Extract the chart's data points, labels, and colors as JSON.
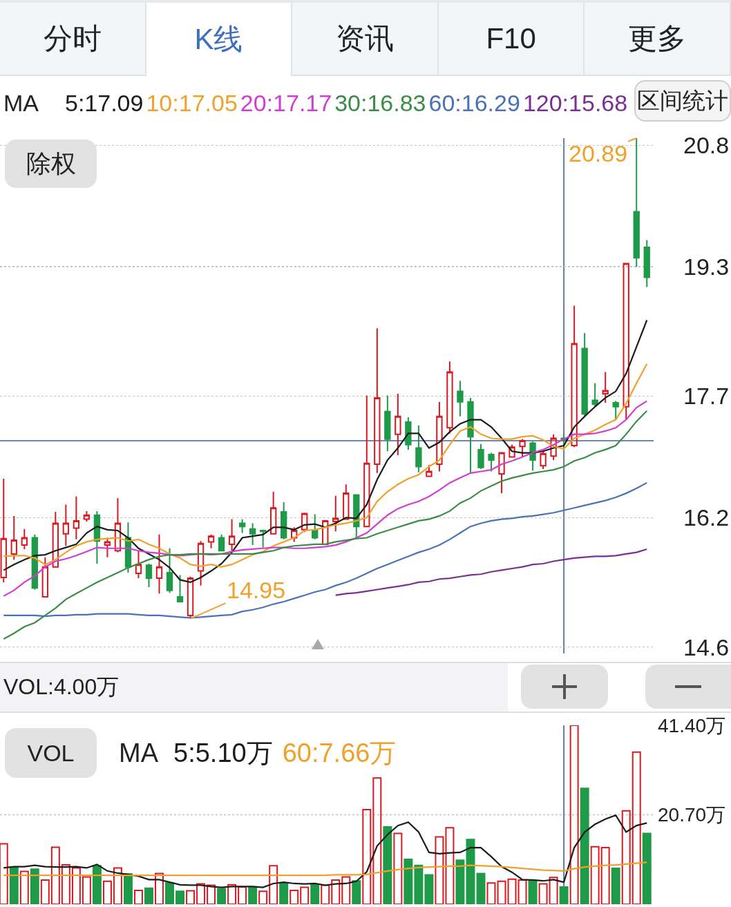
{
  "chart_data": [
    {
      "type": "other",
      "annotations": [
        "分时",
        "K线",
        "资讯",
        "F10",
        "更多"
      ]
    },
    {
      "type": "candlestick",
      "categories": [
        null,
        null,
        null,
        null,
        null,
        null,
        null,
        null,
        null,
        null,
        null,
        null,
        null,
        null,
        null,
        null,
        null,
        null,
        null,
        null,
        null,
        null,
        null,
        null,
        null,
        null,
        null,
        null,
        null,
        null,
        null,
        null,
        null,
        null,
        null,
        null,
        null,
        null,
        null,
        null,
        null,
        null,
        null,
        null,
        null,
        null,
        null,
        null,
        null,
        null,
        null,
        null,
        null,
        null,
        null,
        null,
        null,
        null,
        null,
        null,
        null,
        null,
        null
      ],
      "ohlc": [
        [
          15.46,
          16.68,
          15.4,
          15.94
        ],
        [
          15.75,
          16.22,
          15.68,
          15.92
        ],
        [
          15.86,
          16.06,
          15.81,
          15.95
        ],
        [
          15.95,
          15.99,
          15.31,
          15.33
        ],
        [
          15.22,
          15.71,
          15.22,
          15.59
        ],
        [
          15.59,
          16.27,
          15.59,
          16.13
        ],
        [
          16.0,
          16.36,
          15.85,
          16.13
        ],
        [
          16.07,
          16.46,
          15.93,
          16.16
        ],
        [
          16.18,
          16.28,
          16.15,
          16.23
        ],
        [
          16.23,
          16.28,
          15.63,
          15.91
        ],
        [
          15.86,
          15.95,
          15.71,
          15.9
        ],
        [
          15.79,
          16.44,
          15.77,
          16.13
        ],
        [
          15.95,
          16.14,
          15.52,
          15.59
        ],
        [
          15.51,
          15.79,
          15.45,
          15.62
        ],
        [
          15.61,
          15.63,
          15.34,
          15.45
        ],
        [
          15.45,
          15.99,
          15.26,
          15.59
        ],
        [
          15.52,
          15.82,
          15.27,
          15.3
        ],
        [
          15.22,
          15.49,
          15.16,
          15.16
        ],
        [
          14.99,
          15.47,
          14.95,
          15.45
        ],
        [
          15.54,
          15.91,
          15.36,
          15.88
        ],
        [
          15.9,
          15.99,
          15.82,
          15.97
        ],
        [
          15.95,
          15.99,
          15.79,
          15.79
        ],
        [
          15.87,
          16.18,
          15.79,
          15.97
        ],
        [
          16.13,
          16.18,
          16.01,
          16.09
        ],
        [
          16.06,
          16.13,
          15.86,
          16.0
        ],
        [
          16.04,
          16.05,
          15.83,
          16.03
        ],
        [
          16.0,
          16.52,
          15.99,
          16.32
        ],
        [
          16.27,
          16.39,
          15.93,
          15.95
        ],
        [
          15.95,
          16.08,
          15.9,
          16.04
        ],
        [
          16.05,
          16.26,
          16.02,
          16.25
        ],
        [
          16.04,
          16.24,
          15.93,
          15.95
        ],
        [
          15.87,
          16.16,
          15.87,
          16.16
        ],
        [
          16.15,
          16.47,
          16.03,
          16.19
        ],
        [
          16.18,
          16.61,
          16.18,
          16.5
        ],
        [
          16.48,
          16.48,
          15.95,
          16.09
        ],
        [
          16.09,
          17.71,
          16.09,
          16.87
        ],
        [
          16.86,
          18.54,
          16.75,
          17.68
        ],
        [
          17.51,
          17.71,
          17.02,
          17.17
        ],
        [
          17.23,
          17.73,
          16.97,
          17.45
        ],
        [
          17.38,
          17.44,
          17.04,
          17.1
        ],
        [
          17.06,
          17.34,
          16.76,
          16.83
        ],
        [
          16.71,
          16.85,
          16.71,
          16.77
        ],
        [
          16.86,
          17.63,
          16.77,
          17.45
        ],
        [
          17.31,
          18.13,
          17.24,
          18.0
        ],
        [
          17.76,
          17.89,
          17.45,
          17.63
        ],
        [
          17.63,
          17.68,
          16.75,
          17.2
        ],
        [
          17.04,
          17.11,
          16.8,
          16.82
        ],
        [
          16.98,
          17.0,
          16.77,
          16.91
        ],
        [
          16.74,
          17.0,
          16.5,
          17.0
        ],
        [
          16.95,
          17.1,
          16.94,
          17.07
        ],
        [
          17.08,
          17.17,
          16.95,
          17.15
        ],
        [
          17.12,
          17.14,
          16.78,
          16.91
        ],
        [
          16.84,
          17.02,
          16.8,
          16.99
        ],
        [
          16.96,
          17.23,
          16.91,
          17.18
        ],
        [
          17.18,
          17.24,
          17.06,
          17.15
        ],
        [
          17.09,
          18.82,
          17.07,
          18.35
        ],
        [
          18.29,
          18.48,
          17.46,
          17.48
        ],
        [
          17.65,
          17.86,
          17.57,
          17.6
        ],
        [
          17.73,
          18.0,
          17.62,
          17.77
        ],
        [
          17.62,
          17.64,
          17.41,
          17.57
        ],
        [
          17.57,
          19.34,
          17.41,
          19.34
        ],
        [
          19.98,
          20.89,
          19.3,
          19.41
        ],
        [
          19.54,
          19.63,
          19.05,
          19.17
        ]
      ],
      "colors": [
        "#d8191f",
        "#d8191f",
        "#d8191f",
        "#1e9a48",
        "#d8191f",
        "#d8191f",
        "#d8191f",
        "#d8191f",
        "#d8191f",
        "#1e9a48",
        "#d8191f",
        "#d8191f",
        "#1e9a48",
        "#d8191f",
        "#1e9a48",
        "#d8191f",
        "#1e9a48",
        "#1e9a48",
        "#d8191f",
        "#d8191f",
        "#d8191f",
        "#1e9a48",
        "#d8191f",
        "#1e9a48",
        "#1e9a48",
        "#1e9a48",
        "#d8191f",
        "#1e9a48",
        "#d8191f",
        "#d8191f",
        "#1e9a48",
        "#d8191f",
        "#d8191f",
        "#d8191f",
        "#1e9a48",
        "#d8191f",
        "#d8191f",
        "#1e9a48",
        "#d8191f",
        "#1e9a48",
        "#1e9a48",
        "#d8191f",
        "#d8191f",
        "#d8191f",
        "#1e9a48",
        "#1e9a48",
        "#1e9a48",
        "#1e9a48",
        "#d8191f",
        "#d8191f",
        "#d8191f",
        "#1e9a48",
        "#d8191f",
        "#d8191f",
        "#1e9a48",
        "#d8191f",
        "#1e9a48",
        "#1e9a48",
        "#d8191f",
        "#1e9a48",
        "#d8191f",
        "#1e9a48",
        "#1e9a48"
      ],
      "series": [
        {
          "type": "line",
          "name": "5:17.09",
          "color": "#1c1c1c",
          "values": [
            15.55,
            15.62,
            15.68,
            15.73,
            15.74,
            15.79,
            15.83,
            15.87,
            16.01,
            16.09,
            16.05,
            16.04,
            15.95,
            15.82,
            15.75,
            15.68,
            15.58,
            15.43,
            15.4,
            15.46,
            15.54,
            15.63,
            15.77,
            15.95,
            15.97,
            15.99,
            16.08,
            16.08,
            16.05,
            16.11,
            16.12,
            16.08,
            16.13,
            16.2,
            16.19,
            16.36,
            16.67,
            16.91,
            17.06,
            17.24,
            17.24,
            17.06,
            17.13,
            17.26,
            17.36,
            17.41,
            17.41,
            17.32,
            17.18,
            17.02,
            17.0,
            17.0,
            17.02,
            17.06,
            17.09,
            17.32,
            17.45,
            17.57,
            17.68,
            17.76,
            17.98,
            18.31,
            18.64
          ]
        },
        {
          "type": "line",
          "name": "10:17.05",
          "color": "#f0a12c",
          "values": [
            15.72,
            15.73,
            15.73,
            15.7,
            15.62,
            15.68,
            15.77,
            15.85,
            15.9,
            15.93,
            15.94,
            15.95,
            15.91,
            15.93,
            15.87,
            15.82,
            15.75,
            15.7,
            15.62,
            15.6,
            15.62,
            15.59,
            15.62,
            15.68,
            15.74,
            15.78,
            15.85,
            15.9,
            15.95,
            16.04,
            16.05,
            16.08,
            16.11,
            16.13,
            16.16,
            16.2,
            16.4,
            16.52,
            16.61,
            16.68,
            16.73,
            16.83,
            16.91,
            17.1,
            17.27,
            17.32,
            17.23,
            17.18,
            17.17,
            17.17,
            17.2,
            17.21,
            17.16,
            17.08,
            17.05,
            17.18,
            17.23,
            17.28,
            17.35,
            17.41,
            17.61,
            17.86,
            18.1
          ]
        },
        {
          "type": "line",
          "name": "20:17.17",
          "color": "#d43bd4",
          "values": [
            15.23,
            15.3,
            15.4,
            15.48,
            15.59,
            15.66,
            15.69,
            15.73,
            15.78,
            15.83,
            15.82,
            15.82,
            15.82,
            15.79,
            15.77,
            15.76,
            15.74,
            15.73,
            15.74,
            15.75,
            15.74,
            15.75,
            15.78,
            15.8,
            15.81,
            15.82,
            15.83,
            15.83,
            15.82,
            15.82,
            15.83,
            15.84,
            15.86,
            15.9,
            15.95,
            16.01,
            16.12,
            16.23,
            16.31,
            16.36,
            16.4,
            16.46,
            16.54,
            16.63,
            16.69,
            16.75,
            16.77,
            16.79,
            16.86,
            16.9,
            16.95,
            17.0,
            17.04,
            17.1,
            17.17,
            17.23,
            17.23,
            17.24,
            17.27,
            17.31,
            17.41,
            17.56,
            17.64
          ]
        },
        {
          "type": "line",
          "name": "30:16.83",
          "color": "#3a8d47",
          "values": [
            14.7,
            14.77,
            14.85,
            14.9,
            14.99,
            15.08,
            15.19,
            15.26,
            15.33,
            15.4,
            15.46,
            15.52,
            15.58,
            15.63,
            15.68,
            15.72,
            15.74,
            15.74,
            15.75,
            15.75,
            15.75,
            15.75,
            15.75,
            15.75,
            15.75,
            15.77,
            15.79,
            15.83,
            15.85,
            15.86,
            15.87,
            15.87,
            15.9,
            15.92,
            15.94,
            15.95,
            16.0,
            16.04,
            16.08,
            16.12,
            16.16,
            16.18,
            16.22,
            16.28,
            16.38,
            16.44,
            16.53,
            16.59,
            16.65,
            16.69,
            16.72,
            16.75,
            16.77,
            16.79,
            16.83,
            16.9,
            16.94,
            17.0,
            17.04,
            17.09,
            17.23,
            17.39,
            17.52
          ]
        },
        {
          "type": "line",
          "name": "60:16.29",
          "color": "#4a72b8",
          "values": [
            14.99,
            14.99,
            14.99,
            14.99,
            14.98,
            14.99,
            14.99,
            15.0,
            15.0,
            15.01,
            15.01,
            15.01,
            15.01,
            15.0,
            14.99,
            14.99,
            14.98,
            14.97,
            14.96,
            14.97,
            14.98,
            14.99,
            15.0,
            15.04,
            15.06,
            15.09,
            15.13,
            15.16,
            15.2,
            15.24,
            15.28,
            15.31,
            15.36,
            15.4,
            15.45,
            15.51,
            15.57,
            15.62,
            15.67,
            15.72,
            15.77,
            15.81,
            15.86,
            15.93,
            16.01,
            16.09,
            16.13,
            16.16,
            16.18,
            16.19,
            16.21,
            16.22,
            16.24,
            16.26,
            16.29,
            16.32,
            16.35,
            16.38,
            16.41,
            16.45,
            16.5,
            16.56,
            16.63
          ]
        },
        {
          "type": "line",
          "name": "120:15.68",
          "color": "#7b2f96",
          "values": [
            null,
            null,
            null,
            null,
            null,
            null,
            null,
            null,
            null,
            null,
            null,
            null,
            null,
            null,
            null,
            null,
            null,
            null,
            null,
            null,
            null,
            null,
            null,
            null,
            null,
            null,
            null,
            null,
            null,
            null,
            null,
            null,
            15.24,
            15.26,
            15.27,
            15.29,
            15.31,
            15.33,
            15.35,
            15.37,
            15.4,
            15.41,
            15.44,
            15.45,
            15.47,
            15.49,
            15.5,
            15.53,
            15.55,
            15.57,
            15.59,
            15.62,
            15.63,
            15.66,
            15.68,
            15.7,
            15.71,
            15.72,
            15.72,
            15.73,
            15.75,
            15.77,
            15.81
          ]
        }
      ],
      "ylim": [
        14.52,
        20.89
      ],
      "yticks": [
        20.8,
        19.3,
        17.7,
        16.2,
        14.6
      ],
      "grid": "y",
      "tick_labels": "y",
      "legend": "top left",
      "legend_title": "MA",
      "annotations": [
        "除权",
        "区间统计",
        "20.89",
        "14.95"
      ],
      "ref_lines": [
        {
          "axis": "y",
          "value": 17.15,
          "color": "#3d5f9f"
        }
      ]
    },
    {
      "type": "bar",
      "title": "VOL:4.00万",
      "categories": [
        null,
        null,
        null,
        null,
        null,
        null,
        null,
        null,
        null,
        null,
        null,
        null,
        null,
        null,
        null,
        null,
        null,
        null,
        null,
        null,
        null,
        null,
        null,
        null,
        null,
        null,
        null,
        null,
        null,
        null,
        null,
        null,
        null,
        null,
        null,
        null,
        null,
        null,
        null,
        null,
        null,
        null,
        null,
        null,
        null,
        null,
        null,
        null,
        null,
        null,
        null,
        null,
        null,
        null,
        null,
        null,
        null,
        null,
        null,
        null,
        null,
        null,
        null
      ],
      "series": [
        {
          "colors": [
            "#d8191f",
            "#1e9a48",
            "#d8191f",
            "#1e9a48",
            "#d8191f",
            "#d8191f",
            "#d8191f",
            "#d8191f",
            "#d8191f",
            "#1e9a48",
            "#d8191f",
            "#d8191f",
            "#1e9a48",
            "#d8191f",
            "#1e9a48",
            "#d8191f",
            "#1e9a48",
            "#1e9a48",
            "#d8191f",
            "#d8191f",
            "#d8191f",
            "#1e9a48",
            "#d8191f",
            "#d8191f",
            "#1e9a48",
            "#d8191f",
            "#d8191f",
            "#1e9a48",
            "#d8191f",
            "#d8191f",
            "#1e9a48",
            "#d8191f",
            "#d8191f",
            "#d8191f",
            "#1e9a48",
            "#d8191f",
            "#d8191f",
            "#1e9a48",
            "#d8191f",
            "#1e9a48",
            "#1e9a48",
            "#1e9a48",
            "#d8191f",
            "#d8191f",
            "#1e9a48",
            "#1e9a48",
            "#1e9a48",
            "#d8191f",
            "#d8191f",
            "#d8191f",
            "#d8191f",
            "#1e9a48",
            "#d8191f",
            "#d8191f",
            "#1e9a48",
            "#d8191f",
            "#1e9a48",
            "#d8191f",
            "#d8191f",
            "#1e9a48",
            "#d8191f",
            "#d8191f",
            "#1e9a48"
          ],
          "values": [
            14.0,
            8.5,
            7.6,
            8.1,
            5.6,
            13.2,
            9.1,
            8.4,
            6.3,
            8.9,
            5.3,
            8.4,
            7.0,
            3.2,
            3.7,
            7.1,
            4.9,
            3.0,
            3.1,
            4.7,
            4.4,
            3.6,
            4.5,
            4.0,
            3.9,
            3.0,
            8.9,
            4.9,
            3.2,
            3.9,
            4.6,
            4.4,
            5.6,
            6.3,
            5.4,
            21.9,
            29.2,
            17.9,
            16.4,
            10.4,
            9.0,
            6.8,
            15.6,
            17.7,
            10.2,
            15.0,
            7.1,
            4.9,
            5.3,
            5.8,
            5.6,
            5.4,
            4.7,
            6.2,
            4.0,
            41.4,
            26.8,
            13.3,
            13.1,
            8.3,
            21.6,
            35.2,
            16.4
          ]
        },
        {
          "type": "line",
          "name": "5:5.10万",
          "color": "#1c1c1c",
          "values": [
            8.4,
            8.7,
            8.7,
            9.0,
            8.7,
            8.6,
            8.6,
            8.7,
            8.4,
            9.2,
            7.7,
            7.2,
            6.9,
            6.5,
            5.7,
            5.7,
            5.1,
            4.5,
            4.4,
            4.4,
            4.1,
            3.9,
            4.1,
            4.1,
            4.1,
            3.9,
            4.8,
            5.1,
            4.8,
            4.7,
            4.8,
            4.4,
            4.7,
            4.8,
            5.3,
            7.5,
            13.5,
            16.1,
            18.2,
            19.0,
            16.7,
            12.0,
            11.7,
            11.9,
            12.0,
            13.1,
            13.1,
            11.0,
            8.7,
            7.4,
            5.7,
            5.6,
            5.4,
            5.7,
            5.1,
            13.1,
            16.7,
            18.5,
            19.7,
            20.6,
            16.7,
            18.2,
            18.8
          ]
        },
        {
          "type": "line",
          "name": "60:7.66万",
          "color": "#f0a12c",
          "values": [
            6.7,
            6.7,
            6.7,
            6.7,
            6.7,
            6.7,
            6.7,
            6.7,
            6.7,
            6.7,
            6.7,
            6.7,
            6.7,
            6.7,
            6.7,
            6.7,
            6.7,
            6.7,
            6.7,
            6.7,
            6.7,
            6.7,
            6.7,
            6.7,
            6.7,
            6.7,
            6.7,
            6.7,
            6.7,
            6.7,
            6.7,
            6.7,
            6.8,
            6.8,
            6.8,
            6.9,
            7.3,
            7.7,
            8.0,
            8.3,
            8.5,
            8.6,
            8.7,
            8.8,
            8.8,
            9.0,
            8.9,
            8.8,
            8.7,
            8.5,
            8.3,
            8.1,
            7.9,
            7.8,
            7.7,
            8.2,
            8.6,
            8.8,
            9.0,
            9.1,
            9.3,
            9.5,
            9.7
          ]
        }
      ],
      "ylim": [
        0,
        41.4
      ],
      "yticks": [
        {
          "value": 41.4,
          "label": "41.40万"
        },
        {
          "value": 20.7,
          "label": "20.70万"
        }
      ],
      "tick_labels": "y",
      "legend": "top left",
      "legend_title": "MA",
      "annotations": [
        "VOL"
      ],
      "ref_lines": [
        {
          "axis": "y",
          "value": 20.7,
          "color": "#c4c4c4",
          "line_style": "dotted"
        }
      ]
    }
  ]
}
